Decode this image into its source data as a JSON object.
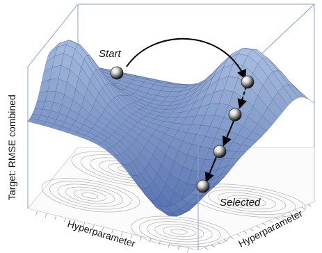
{
  "labels": {
    "z_axis": "Target: RMSE combined",
    "x_axis": "Hyperparameter",
    "y_axis": "Hyperparameter"
  },
  "annotations": {
    "start": "Start",
    "selected": "Selected"
  },
  "colors": {
    "surface": "#6f8fcf",
    "surface_dark": "#3c5aa0",
    "mesh": "#2b3f78",
    "box": "#8e9dc6",
    "contour": "#b9b9b9",
    "arrow": "#000000"
  }
}
